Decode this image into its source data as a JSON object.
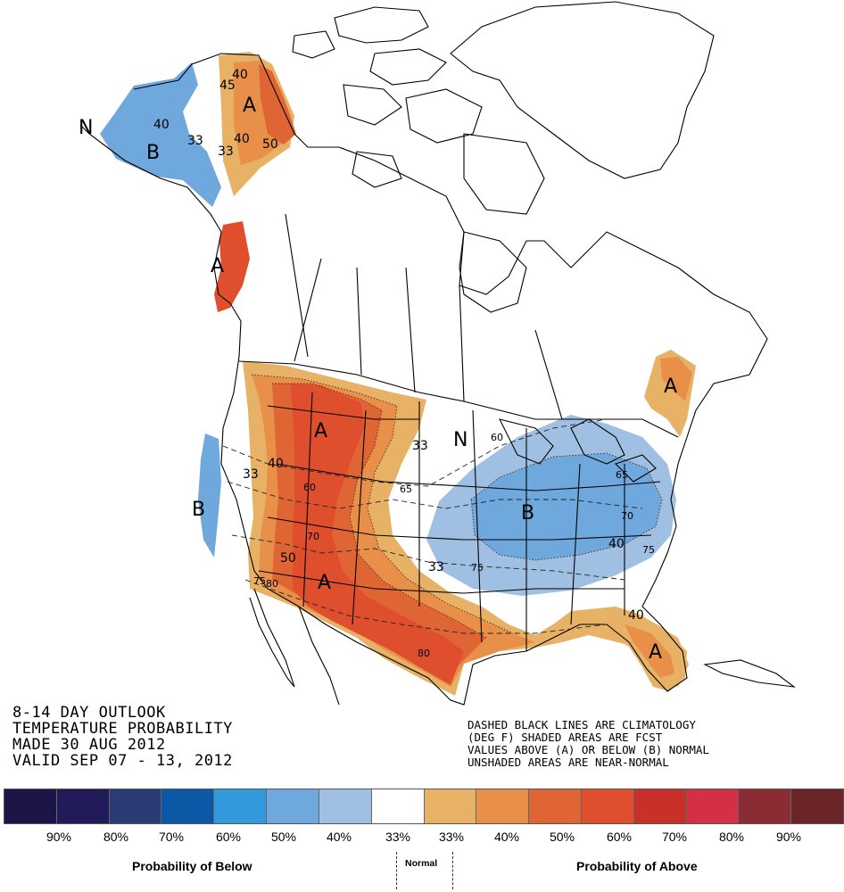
{
  "title_block": {
    "line1": "8-14 DAY OUTLOOK",
    "line2": "TEMPERATURE PROBABILITY",
    "line3": "MADE  30 AUG 2012",
    "line4": "VALID  SEP 07 - 13, 2012"
  },
  "note_block": {
    "line1": "DASHED BLACK LINES ARE CLIMATOLOGY",
    "line2": "(DEG F) SHADED AREAS ARE FCST",
    "line3": "VALUES ABOVE (A) OR BELOW (B) NORMAL",
    "line4": "UNSHADED AREAS ARE NEAR-NORMAL"
  },
  "colors": {
    "below_90": "#1c1648",
    "below_80": "#221b5a",
    "below_70": "#2b3b73",
    "below_60": "#0b58a6",
    "below_50": "#3399dd",
    "below_40": "#6fa8dc",
    "below_33": "#9fc0e2",
    "normal": "#ffffff",
    "above_33": "#e8b266",
    "above_40": "#e8904a",
    "above_50": "#e06535",
    "above_60": "#df4f2e",
    "above_70": "#c9302a",
    "above_80": "#d32f45",
    "above_90": "#8b2b33",
    "above_max": "#6b2428"
  },
  "legend": {
    "labels": [
      "90%",
      "80%",
      "70%",
      "60%",
      "50%",
      "40%",
      "33%",
      "33%",
      "40%",
      "50%",
      "60%",
      "70%",
      "80%",
      "90%"
    ],
    "below_caption": "Probability of Below",
    "normal_caption": "Normal",
    "above_caption": "Probability of Above"
  },
  "map_labels": {
    "letters": [
      "A",
      "A",
      "A",
      "A",
      "A",
      "A",
      "B",
      "B",
      "B",
      "N",
      "N"
    ],
    "probabilities": [
      "40",
      "50",
      "40",
      "33",
      "45",
      "40",
      "33",
      "40",
      "50",
      "33",
      "33",
      "40",
      "33",
      "40"
    ],
    "climatology": [
      "60",
      "65",
      "70",
      "75",
      "75",
      "80",
      "80",
      "60",
      "65",
      "70",
      "75"
    ]
  }
}
